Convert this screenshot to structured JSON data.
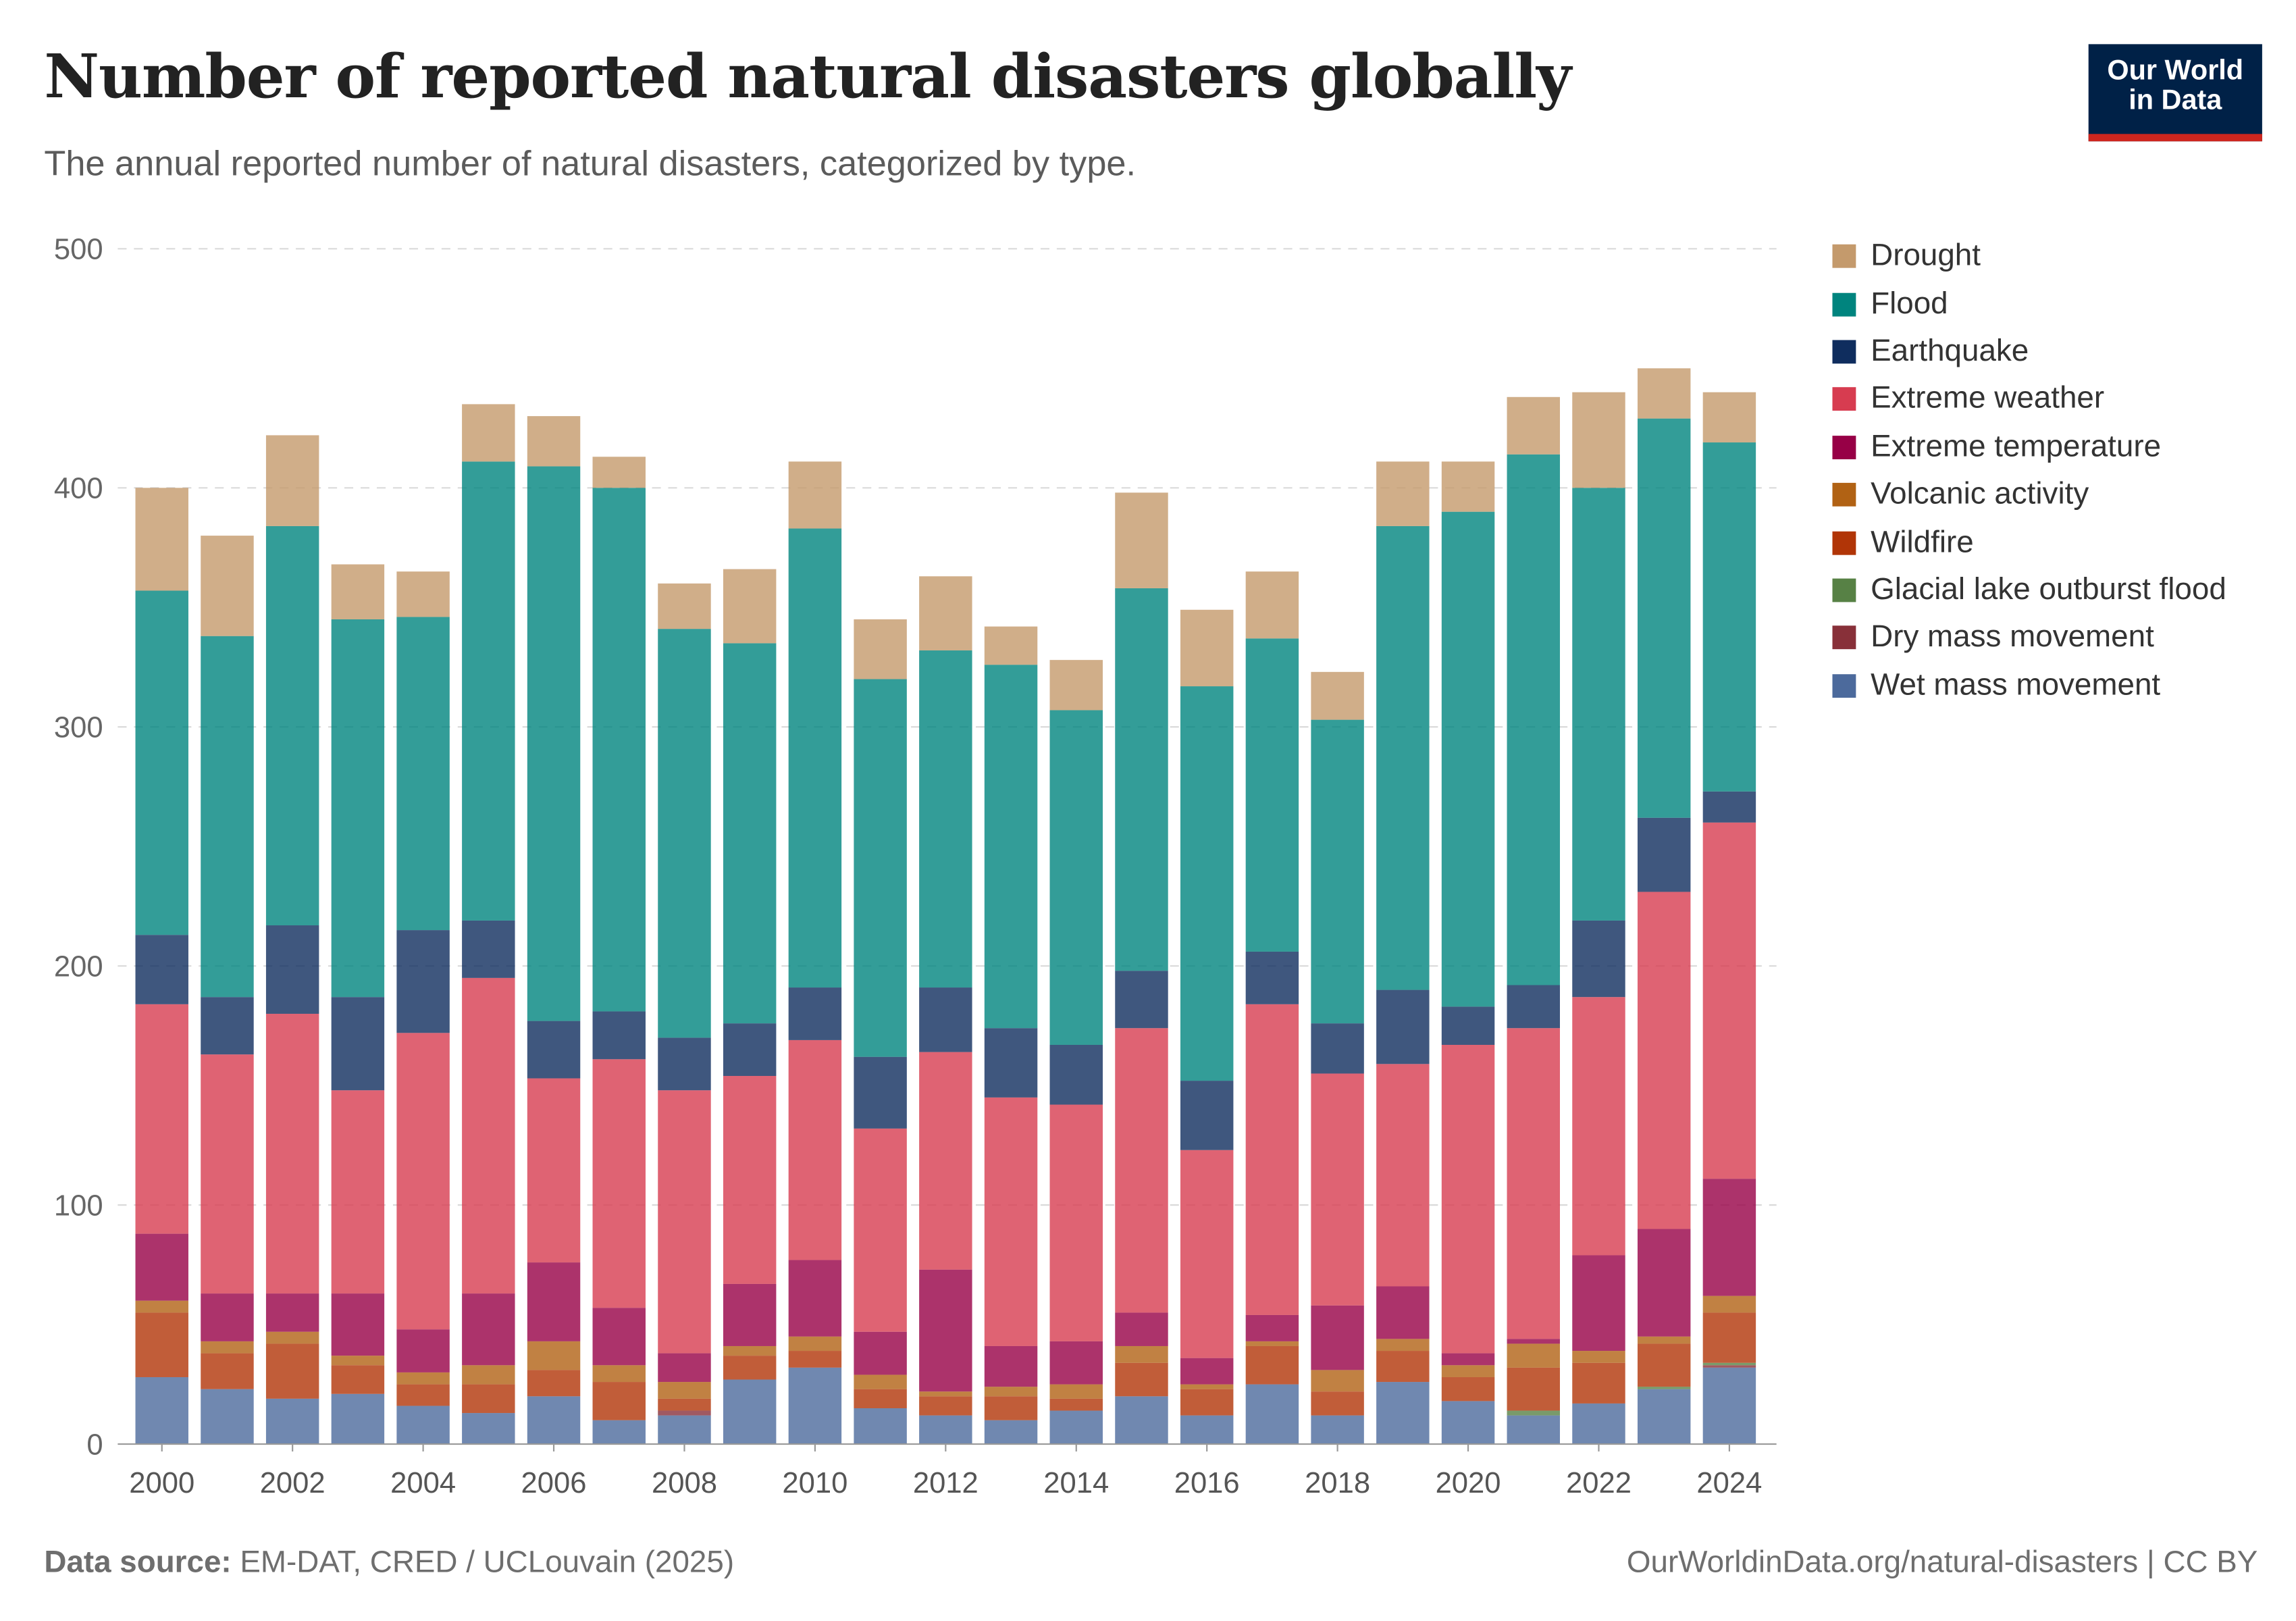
{
  "header": {
    "title": "Number of reported natural disasters globally",
    "subtitle": "The annual reported number of natural disasters, categorized by type.",
    "logo_text": "Our World in Data"
  },
  "footer": {
    "source_label": "Data source:",
    "source_text": "EM-DAT, CRED / UCLouvain (2025)",
    "url_license": "OurWorldinData.org/natural-disasters | CC BY"
  },
  "chart_data": {
    "type": "bar",
    "stacked": true,
    "title": "Number of reported natural disasters globally",
    "xlabel": "",
    "ylabel": "",
    "ylim": [
      0,
      500
    ],
    "yticks": [
      0,
      100,
      200,
      300,
      400,
      500
    ],
    "xtick_labels": [
      "2000",
      "2002",
      "2004",
      "2006",
      "2008",
      "2010",
      "2012",
      "2014",
      "2016",
      "2018",
      "2020",
      "2022",
      "2024"
    ],
    "grid": "horizontal dashed",
    "legend_position": "right",
    "categories": [
      2000,
      2001,
      2002,
      2003,
      2004,
      2005,
      2006,
      2007,
      2008,
      2009,
      2010,
      2011,
      2012,
      2013,
      2014,
      2015,
      2016,
      2017,
      2018,
      2019,
      2020,
      2021,
      2022,
      2023,
      2024
    ],
    "legend_order": [
      "Drought",
      "Flood",
      "Earthquake",
      "Extreme weather",
      "Extreme temperature",
      "Volcanic activity",
      "Wildfire",
      "Glacial lake outburst flood",
      "Dry mass movement",
      "Wet mass movement"
    ],
    "series": [
      {
        "name": "Wet mass movement",
        "color": "#4c6a9c",
        "values": [
          28,
          23,
          19,
          21,
          16,
          13,
          20,
          10,
          12,
          27,
          32,
          15,
          12,
          10,
          14,
          20,
          12,
          25,
          12,
          26,
          18,
          12,
          17,
          23,
          32
        ]
      },
      {
        "name": "Dry mass movement",
        "color": "#883039",
        "values": [
          0,
          0,
          0,
          0,
          0,
          0,
          0,
          0,
          2,
          0,
          0,
          0,
          0,
          0,
          0,
          0,
          0,
          0,
          0,
          0,
          0,
          0,
          0,
          0,
          1
        ]
      },
      {
        "name": "Glacial lake outburst flood",
        "color": "#578145",
        "values": [
          0,
          0,
          0,
          0,
          0,
          0,
          0,
          0,
          0,
          0,
          0,
          0,
          0,
          0,
          0,
          0,
          0,
          0,
          0,
          0,
          0,
          2,
          0,
          1,
          1
        ]
      },
      {
        "name": "Wildfire",
        "color": "#b13507",
        "values": [
          27,
          15,
          23,
          12,
          9,
          12,
          11,
          16,
          5,
          10,
          7,
          8,
          8,
          10,
          5,
          14,
          11,
          16,
          10,
          13,
          10,
          18,
          17,
          18,
          21
        ]
      },
      {
        "name": "Volcanic activity",
        "color": "#b16214",
        "values": [
          5,
          5,
          5,
          4,
          5,
          8,
          12,
          7,
          7,
          4,
          6,
          6,
          2,
          4,
          6,
          7,
          2,
          2,
          9,
          5,
          5,
          10,
          5,
          3,
          7
        ]
      },
      {
        "name": "Extreme temperature",
        "color": "#970046",
        "values": [
          28,
          20,
          16,
          26,
          18,
          30,
          33,
          24,
          12,
          26,
          32,
          18,
          51,
          17,
          18,
          14,
          11,
          11,
          27,
          22,
          5,
          2,
          40,
          45,
          49
        ]
      },
      {
        "name": "Extreme weather",
        "color": "#d73c50",
        "values": [
          96,
          100,
          117,
          85,
          124,
          132,
          77,
          104,
          110,
          87,
          92,
          85,
          91,
          104,
          99,
          119,
          87,
          130,
          97,
          93,
          129,
          130,
          108,
          141,
          149
        ]
      },
      {
        "name": "Earthquake",
        "color": "#0f2d5e",
        "values": [
          29,
          24,
          37,
          39,
          43,
          24,
          24,
          20,
          22,
          22,
          22,
          30,
          27,
          29,
          25,
          24,
          29,
          22,
          21,
          31,
          16,
          18,
          32,
          31,
          13
        ]
      },
      {
        "name": "Flood",
        "color": "#00847e",
        "values": [
          144,
          151,
          167,
          158,
          131,
          192,
          232,
          219,
          171,
          159,
          192,
          158,
          141,
          152,
          140,
          160,
          165,
          131,
          127,
          194,
          207,
          222,
          181,
          167,
          146
        ]
      },
      {
        "name": "Drought",
        "color": "#c49a6c",
        "values": [
          43,
          42,
          38,
          23,
          19,
          24,
          21,
          13,
          19,
          31,
          28,
          25,
          31,
          16,
          21,
          40,
          32,
          28,
          20,
          27,
          21,
          24,
          40,
          21,
          21
        ]
      }
    ]
  }
}
